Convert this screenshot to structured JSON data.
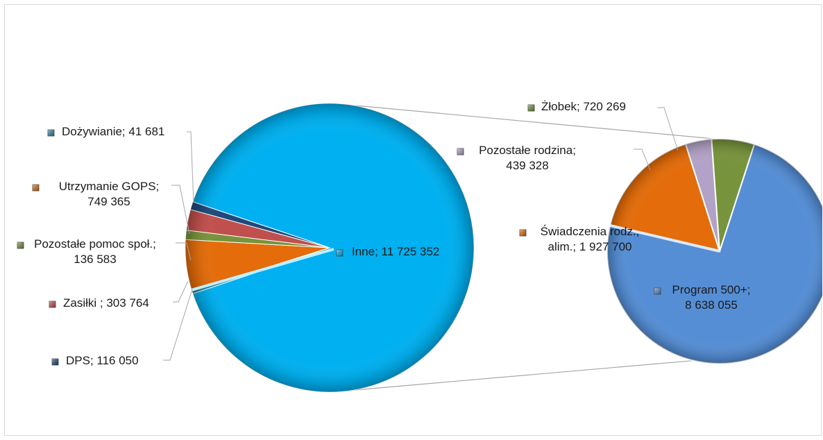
{
  "chart_data": {
    "type": "pie",
    "variant": "pie-of-pie",
    "title": "",
    "main_pie": {
      "slices": [
        {
          "key": "inne",
          "label": "Inne",
          "value": 11725352,
          "text": "Inne; 11 725 352",
          "color": "#00b0f0"
        },
        {
          "key": "dozywianie",
          "label": "Dożywianie",
          "value": 41681,
          "text": "Dożywianie; 41 681",
          "color": "#31859c"
        },
        {
          "key": "gops",
          "label": "Utrzymanie GOPS",
          "value": 749365,
          "text": [
            "Utrzymanie GOPS;",
            "749 365"
          ],
          "color": "#e46c0a"
        },
        {
          "key": "pomoc",
          "label": "Pozostałe pomoc społ.",
          "value": 136583,
          "text": [
            "Pozostałe pomoc społ.;",
            "136 583"
          ],
          "color": "#77933c"
        },
        {
          "key": "zasilki",
          "label": "Zasiłki",
          "value": 303764,
          "text": "Zasiłki ; 303 764",
          "color": "#c0504d"
        },
        {
          "key": "dps",
          "label": "DPS",
          "value": 116050,
          "text": "DPS; 116 050",
          "color": "#1f497d"
        }
      ]
    },
    "secondary_pie": {
      "parent": "Inne",
      "slices": [
        {
          "key": "program",
          "label": "Program 500+",
          "value": 8638055,
          "text": [
            "Program 500+;",
            "8 638 055"
          ],
          "color": "#558ed5"
        },
        {
          "key": "swiadczenia",
          "label": "Świadczenia rodz., alim.",
          "value": 1927700,
          "text": [
            "Świadczenia rodz.,",
            "alim.; 1 927 700"
          ],
          "color": "#e46c0a"
        },
        {
          "key": "rodzina",
          "label": "Pozostałe rodzina",
          "value": 439328,
          "text": [
            "Pozostałe rodzina;",
            "439 328"
          ],
          "color": "#b3a2c7"
        },
        {
          "key": "zlobek",
          "label": "Żłobek",
          "value": 720269,
          "text": "Żłobek; 720 269",
          "color": "#77933c"
        }
      ]
    }
  }
}
